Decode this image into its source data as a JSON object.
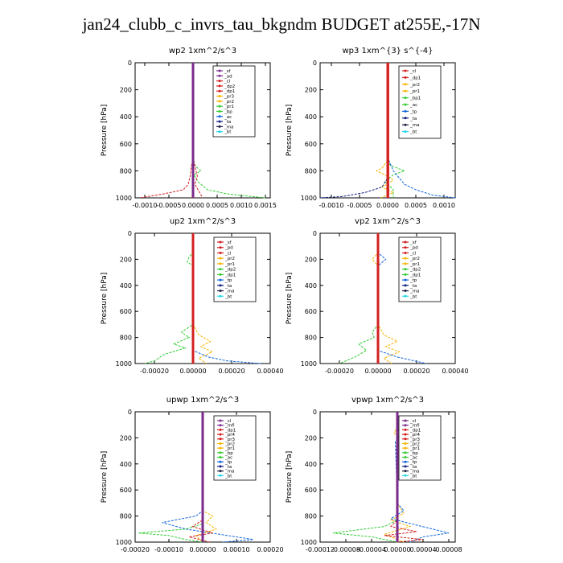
{
  "title": "jan24_clubb_c_invrs_tau_bkgndm  BUDGET at255E,-17N",
  "colors": {
    "purple": "#7B2A8C",
    "red": "#D32020",
    "orange": "#F5B400",
    "green": "#33CC33",
    "blue": "#1166DD",
    "navy": "#102080",
    "dark": "#222244",
    "cyan": "#22D8E8",
    "black": "#000000",
    "gray": "#888888"
  },
  "chart_data": [
    {
      "type": "line",
      "title": "wp2  1xm^2/s^3",
      "ylabel": "Pressure [hPa]",
      "ylim": [
        1000,
        0
      ],
      "xlim": [
        -0.0012,
        0.0016
      ],
      "xticks": [
        -0.001,
        -0.0005,
        0.0,
        0.0005,
        0.001,
        0.0015
      ],
      "xticklabels": [
        "-0.0010",
        "-0.0005",
        "0.0000",
        "0.0005",
        "0.0010",
        "0.0015"
      ],
      "yticks": [
        0,
        200,
        400,
        600,
        800,
        1000
      ],
      "legend": [
        "_sf",
        "_ad",
        "_cl",
        "_dp2",
        "_dp1",
        "_pr3",
        "_pr2",
        "_pr1",
        "_bp",
        "_ac",
        "_ta",
        "_ma",
        "_bt"
      ],
      "legend_colors": [
        "purple",
        "purple",
        "red",
        "red",
        "red",
        "orange",
        "orange",
        "green",
        "green",
        "blue",
        "navy",
        "dark",
        "cyan"
      ],
      "series": [
        {
          "color": "green",
          "p": [
            0,
            700,
            760,
            800,
            830,
            880,
            940,
            970,
            1000
          ],
          "x": [
            0,
            0,
            4e-05,
            0.00016,
            2e-05,
            0.0001,
            0.0003,
            0.0007,
            0.0015
          ]
        },
        {
          "color": "red",
          "p": [
            0,
            700,
            780,
            840,
            900,
            940,
            970,
            1000
          ],
          "x": [
            0,
            0,
            -4e-05,
            -6e-05,
            -0.0001,
            -0.0002,
            -0.0006,
            -0.0011
          ]
        },
        {
          "color": "red",
          "p": [
            0,
            700,
            780,
            840,
            900,
            950,
            1000
          ],
          "x": [
            0,
            0,
            5e-05,
            9e-05,
            4e-05,
            0.00012,
            0.0002
          ]
        },
        {
          "color": "purple",
          "p": [
            0,
            1000
          ],
          "x": [
            0,
            0
          ]
        },
        {
          "color": "orange",
          "p": [
            0,
            800,
            900,
            1000
          ],
          "x": [
            0,
            0,
            2e-05,
            -3e-05
          ]
        }
      ]
    },
    {
      "type": "line",
      "title": "wp3  1xm^{3} s^{-4}",
      "ylabel": "Pressure [hPa]",
      "ylim": [
        1000,
        0
      ],
      "xlim": [
        -0.0012,
        0.0012
      ],
      "xticks": [
        -0.001,
        -0.0005,
        0.0,
        0.0005,
        0.001
      ],
      "xticklabels": [
        "-0.0010",
        "-0.0005",
        "0.0000",
        "0.0005",
        "0.0010"
      ],
      "yticks": [
        0,
        200,
        400,
        600,
        800,
        1000
      ],
      "legend": [
        "_cl",
        "_dp1",
        "_pr2",
        "_pr1",
        "_bp1",
        "_ac",
        "_tp",
        "_ta",
        "_ma",
        "_bt"
      ],
      "legend_colors": [
        "red",
        "red",
        "orange",
        "orange",
        "green",
        "green",
        "blue",
        "navy",
        "dark",
        "cyan"
      ],
      "series": [
        {
          "color": "orange",
          "p": [
            0,
            720,
            780,
            800,
            830,
            870,
            920,
            960,
            1000
          ],
          "x": [
            0,
            0,
            -0.0001,
            -0.0002,
            -5e-05,
            0.0001,
            -0.0001,
            0.0001,
            -0.00012
          ]
        },
        {
          "color": "green",
          "p": [
            0,
            720,
            760,
            800,
            830,
            880,
            940,
            1000
          ],
          "x": [
            0,
            0,
            5e-05,
            0.0003,
            0.0001,
            -5e-05,
            0.0001,
            0.0001
          ]
        },
        {
          "color": "blue",
          "p": [
            0,
            700,
            800,
            900,
            940,
            980,
            1000
          ],
          "x": [
            0,
            0,
            0.0001,
            0.0003,
            0.0005,
            0.0008,
            0.0012
          ]
        },
        {
          "color": "navy",
          "p": [
            0,
            850,
            920,
            960,
            990,
            1000
          ],
          "x": [
            0,
            0,
            -0.0001,
            -0.0004,
            -0.0008,
            -0.0012
          ]
        },
        {
          "color": "red",
          "p": [
            0,
            1000
          ],
          "x": [
            0,
            0
          ]
        },
        {
          "color": "red",
          "p": [
            0,
            1000
          ],
          "x": [
            2e-05,
            2e-05
          ]
        }
      ]
    },
    {
      "type": "line",
      "title": "up2  1xm^2/s^3",
      "ylabel": "Pressure [hPa]",
      "ylim": [
        1000,
        0
      ],
      "xlim": [
        -0.0003,
        0.0004
      ],
      "xticks": [
        -0.0002,
        0.0,
        0.0002,
        0.0004
      ],
      "xticklabels": [
        "-0.00020",
        "0.00000",
        "0.00020",
        "0.00040"
      ],
      "yticks": [
        0,
        200,
        400,
        600,
        800,
        1000
      ],
      "legend": [
        "_sf",
        "_pd",
        "_cl",
        "_pr2",
        "_pr1",
        "_dp2",
        "_dp1",
        "_tp",
        "_ta",
        "_ma",
        "_bt"
      ],
      "legend_colors": [
        "red",
        "red",
        "red",
        "orange",
        "orange",
        "green",
        "green",
        "blue",
        "navy",
        "dark",
        "cyan"
      ],
      "series": [
        {
          "color": "green",
          "p": [
            0,
            150,
            180,
            220,
            250,
            700,
            760,
            800,
            850,
            880,
            930,
            980,
            1000
          ],
          "x": [
            0,
            0,
            -2e-05,
            -3e-05,
            0,
            0,
            -6e-05,
            -2e-05,
            -0.0001,
            -4e-05,
            -0.00015,
            -0.0002,
            -0.00025
          ]
        },
        {
          "color": "orange",
          "p": [
            0,
            700,
            780,
            830,
            870,
            910,
            960,
            1000
          ],
          "x": [
            0,
            0,
            3e-05,
            9e-05,
            4e-05,
            0.0001,
            3e-05,
            7e-05
          ]
        },
        {
          "color": "blue",
          "p": [
            0,
            900,
            950,
            980,
            1000
          ],
          "x": [
            0,
            0,
            8e-05,
            0.00018,
            0.00035
          ]
        },
        {
          "color": "red",
          "p": [
            0,
            1000
          ],
          "x": [
            0,
            0
          ]
        }
      ]
    },
    {
      "type": "line",
      "title": "vp2  1xm^2/s^3",
      "ylabel": "Pressure [hPa]",
      "ylim": [
        1000,
        0
      ],
      "xlim": [
        -0.0003,
        0.0004
      ],
      "xticks": [
        -0.0002,
        0.0,
        0.0002,
        0.0004
      ],
      "xticklabels": [
        "-0.00020",
        "0.00000",
        "0.00020",
        "0.00040"
      ],
      "yticks": [
        0,
        200,
        400,
        600,
        800,
        1000
      ],
      "legend": [
        "_sf",
        "_pd",
        "_cl",
        "_pr2",
        "_pr1",
        "_dp2",
        "_dp1",
        "_tp",
        "_ta",
        "_ma",
        "_bt"
      ],
      "legend_colors": [
        "red",
        "red",
        "red",
        "orange",
        "orange",
        "green",
        "green",
        "blue",
        "navy",
        "dark",
        "cyan"
      ],
      "series": [
        {
          "color": "orange",
          "p": [
            0,
            150,
            200,
            250,
            700,
            780,
            830,
            870,
            910,
            960,
            1000
          ],
          "x": [
            0,
            0,
            -3e-05,
            0,
            0,
            3e-05,
            0.0001,
            4e-05,
            0.00011,
            3e-05,
            7e-05
          ]
        },
        {
          "color": "blue",
          "p": [
            0,
            150,
            200,
            250,
            900,
            950,
            1000
          ],
          "x": [
            0,
            0,
            4e-05,
            0,
            0,
            0.0001,
            0.00025
          ]
        },
        {
          "color": "green",
          "p": [
            0,
            700,
            760,
            800,
            850,
            900,
            950,
            1000
          ],
          "x": [
            0,
            0,
            -3e-05,
            -2e-05,
            -0.0001,
            -6e-05,
            -0.00012,
            -0.0002
          ]
        },
        {
          "color": "red",
          "p": [
            0,
            1000
          ],
          "x": [
            0,
            0
          ]
        }
      ]
    },
    {
      "type": "line",
      "title": "upwp  1xm^2/s^3",
      "ylabel": "Pressure [hPa]",
      "ylim": [
        1000,
        0
      ],
      "xlim": [
        -0.0002,
        0.0002
      ],
      "xticks": [
        -0.0002,
        -0.0001,
        0.0,
        0.0001,
        0.0002
      ],
      "xticklabels": [
        "-0.00020",
        "-0.00010",
        "0.00000",
        "0.00010",
        "0.00020"
      ],
      "yticks": [
        0,
        200,
        400,
        600,
        800,
        1000
      ],
      "legend": [
        "_cl",
        "_mfl",
        "_dp1",
        "_pr4",
        "_pr3",
        "_pr2",
        "_pr1",
        "_bp",
        "_ac",
        "_tp",
        "_ta",
        "_ma",
        "_bt"
      ],
      "legend_colors": [
        "purple",
        "purple",
        "red",
        "red",
        "red",
        "orange",
        "orange",
        "green",
        "green",
        "blue",
        "navy",
        "dark",
        "cyan"
      ],
      "series": [
        {
          "color": "blue",
          "p": [
            0,
            760,
            800,
            850,
            900,
            940,
            980,
            1000
          ],
          "x": [
            0,
            0,
            -2e-05,
            -0.00012,
            -5e-05,
            5e-05,
            0.00015,
            6e-05
          ]
        },
        {
          "color": "green",
          "p": [
            0,
            860,
            900,
            930,
            950,
            980,
            1000
          ],
          "x": [
            0,
            0,
            -5e-05,
            -0.00019,
            -0.0001,
            -5e-05,
            0
          ]
        },
        {
          "color": "orange",
          "p": [
            0,
            760,
            800,
            850,
            900,
            950,
            1000
          ],
          "x": [
            0,
            0,
            3e-05,
            1e-05,
            4e-05,
            -2e-05,
            0
          ]
        },
        {
          "color": "red",
          "p": [
            0,
            830,
            880,
            930,
            960,
            1000
          ],
          "x": [
            0,
            0,
            -3e-05,
            3e-05,
            -4e-05,
            2e-05
          ]
        },
        {
          "color": "purple",
          "p": [
            0,
            1000
          ],
          "x": [
            0,
            0
          ]
        }
      ]
    },
    {
      "type": "line",
      "title": "vpwp  1xm^2/s^3",
      "ylabel": "Pressure [hPa]",
      "ylim": [
        1000,
        0
      ],
      "xlim": [
        -0.00012,
        9e-05
      ],
      "xticks": [
        -0.00012,
        -8e-05,
        -4e-05,
        0.0,
        4e-05,
        8e-05
      ],
      "xticklabels": [
        "-0.00012",
        "-0.00008",
        "-0.00004",
        "0.00000",
        "0.00004",
        "0.00008"
      ],
      "yticks": [
        0,
        200,
        400,
        600,
        800,
        1000
      ],
      "legend": [
        "_cl",
        "_mfl",
        "_dp1",
        "_pr4",
        "_pr3",
        "_pr2",
        "_pr1",
        "_bp",
        "_ac",
        "_tp",
        "_ta",
        "_ma",
        "_bt"
      ],
      "legend_colors": [
        "purple",
        "purple",
        "red",
        "red",
        "red",
        "orange",
        "orange",
        "green",
        "green",
        "blue",
        "navy",
        "dark",
        "cyan"
      ],
      "series": [
        {
          "color": "orange",
          "p": [
            0,
            120,
            160,
            220,
            280,
            700,
            780,
            830,
            880,
            940,
            1000
          ],
          "x": [
            0,
            0,
            -5e-06,
            5e-06,
            0,
            0,
            1e-05,
            -1e-05,
            2e-05,
            -2e-05,
            1e-05
          ]
        },
        {
          "color": "blue",
          "p": [
            0,
            120,
            170,
            230,
            700,
            760,
            820,
            870,
            930,
            960,
            1000
          ],
          "x": [
            0,
            0,
            6e-06,
            -3e-06,
            0,
            1e-05,
            -1e-05,
            3e-05,
            8e-05,
            4e-05,
            2e-05
          ]
        },
        {
          "color": "green",
          "p": [
            0,
            830,
            880,
            930,
            960,
            1000
          ],
          "x": [
            0,
            0,
            -2e-05,
            -0.0001,
            -4e-05,
            0
          ]
        },
        {
          "color": "red",
          "p": [
            0,
            830,
            880,
            920,
            950,
            980,
            1000
          ],
          "x": [
            0,
            0,
            -1e-05,
            3e-05,
            -2e-05,
            4e-05,
            0
          ]
        },
        {
          "color": "purple",
          "p": [
            0,
            1000
          ],
          "x": [
            0,
            0
          ]
        }
      ]
    }
  ]
}
